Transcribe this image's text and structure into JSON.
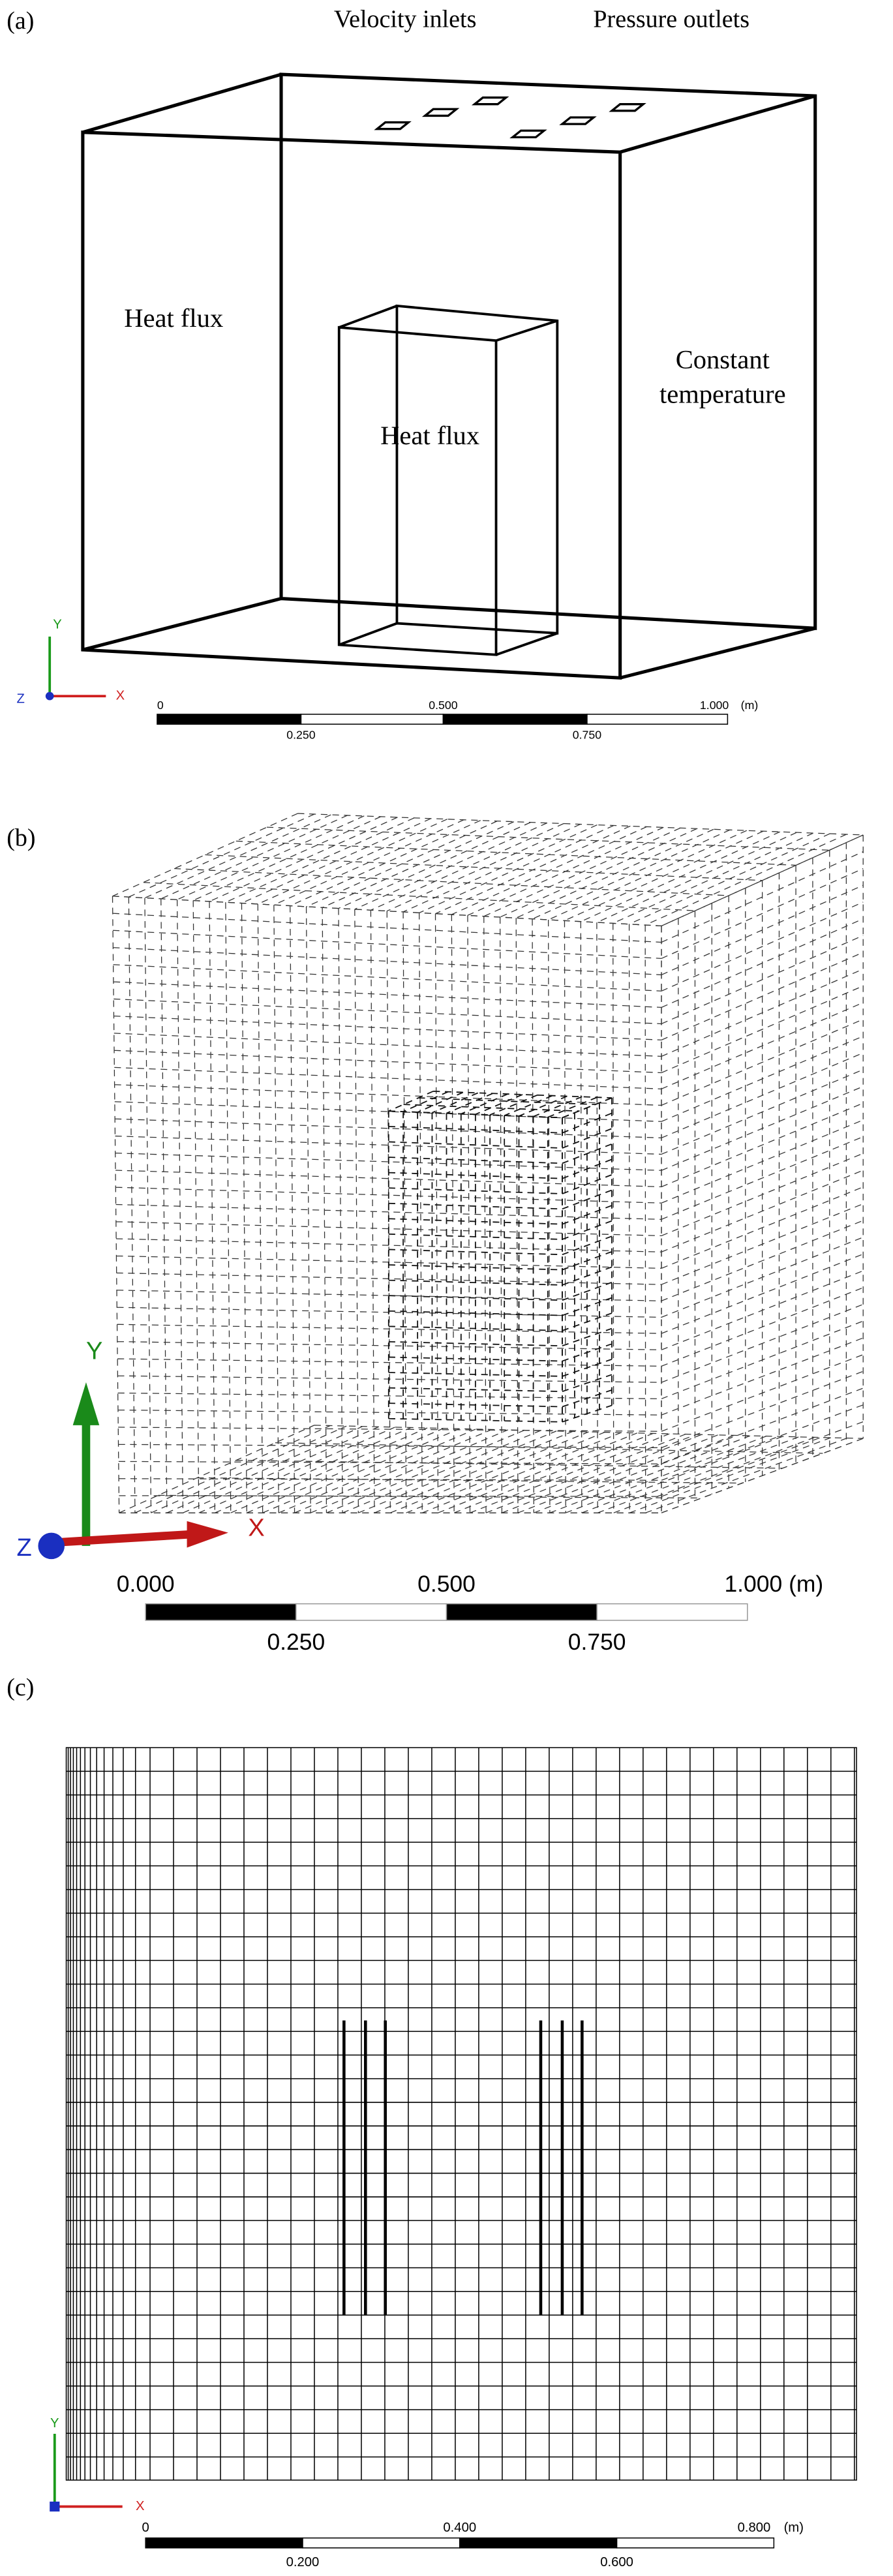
{
  "panels": [
    {
      "label": "(a)",
      "annotations": {
        "top_left": "Velocity inlets",
        "top_right": "Pressure outlets",
        "left": "Heat flux",
        "inner": "Heat flux",
        "right": [
          "Constant",
          "temperature"
        ]
      },
      "axes": {
        "y": "Y",
        "z": "Z",
        "x": "X"
      },
      "scale": {
        "top": [
          "0",
          "0.500",
          "1.000"
        ],
        "unit": "(m)",
        "bottom": [
          "0.250",
          "0.750"
        ]
      }
    },
    {
      "label": "(b)",
      "axes": {
        "y": "Y",
        "z": "Z",
        "x": "X"
      },
      "scale": {
        "top": [
          "0.000",
          "0.500",
          "1.000 (m)"
        ],
        "bottom": [
          "0.250",
          "0.750"
        ]
      }
    },
    {
      "label": "(c)",
      "axes": {
        "y": "Y",
        "x": "X"
      },
      "scale": {
        "top": [
          "0",
          "0.400",
          "0.800"
        ],
        "unit": "(m)",
        "bottom": [
          "0.200",
          "0.600"
        ]
      }
    }
  ]
}
